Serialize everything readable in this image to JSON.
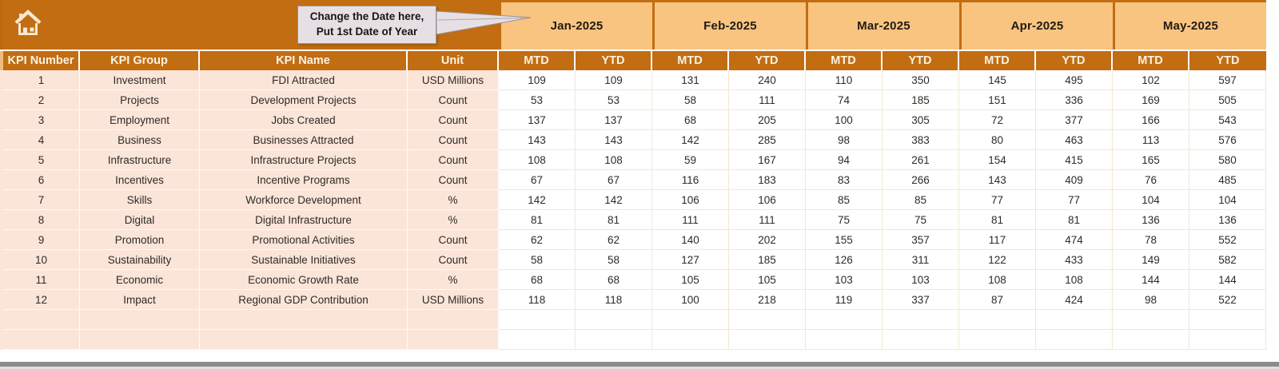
{
  "banner": {
    "callout_line1": "Change the Date here,",
    "callout_line2": "Put 1st Date of Year",
    "months": [
      "Jan-2025",
      "Feb-2025",
      "Mar-2025",
      "Apr-2025",
      "May-2025"
    ]
  },
  "headers": {
    "left": [
      "KPI Number",
      "KPI Group",
      "KPI Name",
      "Unit"
    ],
    "sub": [
      "MTD",
      "YTD"
    ]
  },
  "rows": [
    {
      "number": "1",
      "group": "Investment",
      "name": "FDI Attracted",
      "unit": "USD Millions",
      "values": [
        "109",
        "109",
        "131",
        "240",
        "110",
        "350",
        "145",
        "495",
        "102",
        "597"
      ]
    },
    {
      "number": "2",
      "group": "Projects",
      "name": "Development Projects",
      "unit": "Count",
      "values": [
        "53",
        "53",
        "58",
        "111",
        "74",
        "185",
        "151",
        "336",
        "169",
        "505"
      ]
    },
    {
      "number": "3",
      "group": "Employment",
      "name": "Jobs Created",
      "unit": "Count",
      "values": [
        "137",
        "137",
        "68",
        "205",
        "100",
        "305",
        "72",
        "377",
        "166",
        "543"
      ]
    },
    {
      "number": "4",
      "group": "Business",
      "name": "Businesses Attracted",
      "unit": "Count",
      "values": [
        "143",
        "143",
        "142",
        "285",
        "98",
        "383",
        "80",
        "463",
        "113",
        "576"
      ]
    },
    {
      "number": "5",
      "group": "Infrastructure",
      "name": "Infrastructure Projects",
      "unit": "Count",
      "values": [
        "108",
        "108",
        "59",
        "167",
        "94",
        "261",
        "154",
        "415",
        "165",
        "580"
      ]
    },
    {
      "number": "6",
      "group": "Incentives",
      "name": "Incentive Programs",
      "unit": "Count",
      "values": [
        "67",
        "67",
        "116",
        "183",
        "83",
        "266",
        "143",
        "409",
        "76",
        "485"
      ]
    },
    {
      "number": "7",
      "group": "Skills",
      "name": "Workforce Development",
      "unit": "%",
      "values": [
        "142",
        "142",
        "106",
        "106",
        "85",
        "85",
        "77",
        "77",
        "104",
        "104"
      ]
    },
    {
      "number": "8",
      "group": "Digital",
      "name": "Digital Infrastructure",
      "unit": "%",
      "values": [
        "81",
        "81",
        "111",
        "111",
        "75",
        "75",
        "81",
        "81",
        "136",
        "136"
      ]
    },
    {
      "number": "9",
      "group": "Promotion",
      "name": "Promotional Activities",
      "unit": "Count",
      "values": [
        "62",
        "62",
        "140",
        "202",
        "155",
        "357",
        "117",
        "474",
        "78",
        "552"
      ]
    },
    {
      "number": "10",
      "group": "Sustainability",
      "name": "Sustainable Initiatives",
      "unit": "Count",
      "values": [
        "58",
        "58",
        "127",
        "185",
        "126",
        "311",
        "122",
        "433",
        "149",
        "582"
      ]
    },
    {
      "number": "11",
      "group": "Economic",
      "name": "Economic Growth Rate",
      "unit": "%",
      "values": [
        "68",
        "68",
        "105",
        "105",
        "103",
        "103",
        "108",
        "108",
        "144",
        "144"
      ]
    },
    {
      "number": "12",
      "group": "Impact",
      "name": "Regional GDP Contribution",
      "unit": "USD Millions",
      "values": [
        "118",
        "118",
        "100",
        "218",
        "119",
        "337",
        "87",
        "424",
        "98",
        "522"
      ]
    }
  ],
  "empty_row_count": 2,
  "colors": {
    "dark_orange": "#C26D12",
    "light_orange": "#F9C480",
    "peach": "#FBE5D8",
    "header_text": "#FCF3E3",
    "callout_bg": "#E6E0E5",
    "window_edge": "#8C8C8C"
  }
}
